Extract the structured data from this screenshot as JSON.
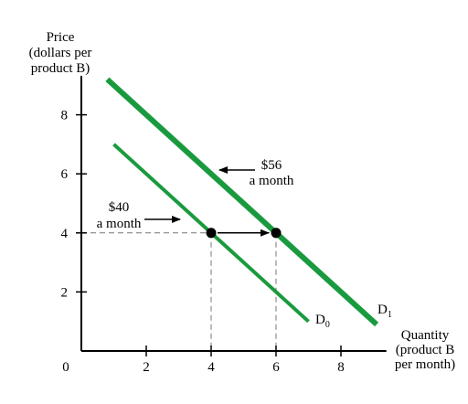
{
  "chart_data": {
    "type": "line",
    "ylabel_lines": [
      "Price",
      "(dollars per",
      "product B)"
    ],
    "xlabel_lines": [
      "Quantity",
      "(product B",
      "per month)"
    ],
    "origin_label": "0",
    "xlim": [
      0,
      9.4
    ],
    "ylim": [
      0,
      9.2
    ],
    "x_ticks": [
      2,
      4,
      6,
      8
    ],
    "x_tick_labels": [
      "2",
      "4",
      "6",
      "8"
    ],
    "y_ticks": [
      2,
      4,
      6,
      8
    ],
    "y_tick_labels": [
      "2",
      "4",
      "6",
      "8"
    ],
    "series": [
      {
        "name": "D0",
        "label_main": "D",
        "label_sub": "0",
        "color": "#1a9a3e",
        "x": [
          1,
          7
        ],
        "y": [
          7,
          1
        ]
      },
      {
        "name": "D1",
        "label_main": "D",
        "label_sub": "1",
        "color": "#1a9a3e",
        "x": [
          0.8,
          9.1
        ],
        "y": [
          9.2,
          0.9
        ]
      }
    ],
    "points": [
      {
        "x": 4,
        "y": 4
      },
      {
        "x": 6,
        "y": 4
      }
    ],
    "annotations": [
      {
        "lines": [
          "$40",
          "a month"
        ]
      },
      {
        "lines": [
          "$56",
          "a month"
        ]
      }
    ]
  }
}
